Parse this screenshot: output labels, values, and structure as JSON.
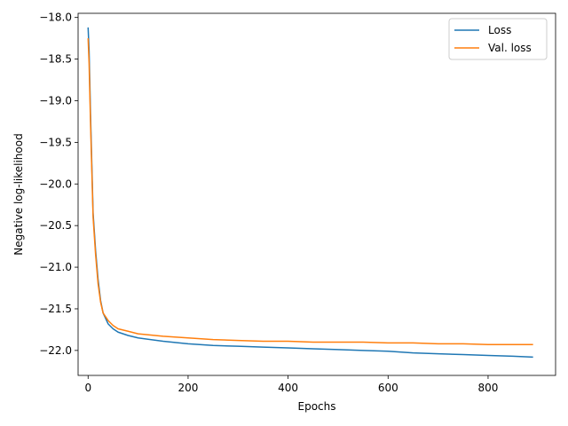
{
  "chart_data": {
    "type": "line",
    "title": "",
    "xlabel": "Epochs",
    "ylabel": "Negative log-likelihood",
    "xlim": [
      -20,
      935
    ],
    "ylim": [
      -22.3,
      -17.95
    ],
    "x_ticks": [
      0,
      200,
      400,
      600,
      800
    ],
    "y_ticks": [
      -18.0,
      -18.5,
      -19.0,
      -19.5,
      -20.0,
      -20.5,
      -21.0,
      -21.5,
      -22.0
    ],
    "x_tick_labels": [
      "0",
      "200",
      "400",
      "600",
      "800"
    ],
    "y_tick_labels": [
      "−18.0",
      "−18.5",
      "−19.0",
      "−19.5",
      "−20.0",
      "−20.5",
      "−21.0",
      "−21.5",
      "−22.0"
    ],
    "grid": false,
    "legend_position": "top-right",
    "series": [
      {
        "name": "Loss",
        "color": "#1f77b4",
        "x": [
          0,
          2,
          5,
          10,
          15,
          20,
          25,
          30,
          40,
          50,
          60,
          80,
          100,
          150,
          200,
          250,
          300,
          350,
          400,
          450,
          500,
          550,
          600,
          650,
          700,
          750,
          800,
          850,
          890
        ],
        "y": [
          -18.12,
          -18.4,
          -19.2,
          -20.35,
          -20.8,
          -21.15,
          -21.4,
          -21.55,
          -21.68,
          -21.74,
          -21.78,
          -21.82,
          -21.85,
          -21.89,
          -21.92,
          -21.94,
          -21.95,
          -21.96,
          -21.97,
          -21.98,
          -21.99,
          -22.0,
          -22.01,
          -22.03,
          -22.04,
          -22.05,
          -22.06,
          -22.07,
          -22.08
        ]
      },
      {
        "name": "Val. loss",
        "color": "#ff7f0e",
        "x": [
          0,
          2,
          5,
          10,
          15,
          20,
          25,
          30,
          40,
          50,
          60,
          80,
          100,
          150,
          200,
          250,
          300,
          350,
          400,
          450,
          500,
          550,
          600,
          650,
          700,
          750,
          800,
          850,
          890
        ],
        "y": [
          -18.25,
          -18.55,
          -19.3,
          -20.4,
          -20.85,
          -21.2,
          -21.42,
          -21.55,
          -21.64,
          -21.7,
          -21.74,
          -21.77,
          -21.8,
          -21.83,
          -21.85,
          -21.87,
          -21.88,
          -21.89,
          -21.89,
          -21.9,
          -21.9,
          -21.9,
          -21.91,
          -21.91,
          -21.92,
          -21.92,
          -21.93,
          -21.93,
          -21.93
        ]
      }
    ]
  }
}
